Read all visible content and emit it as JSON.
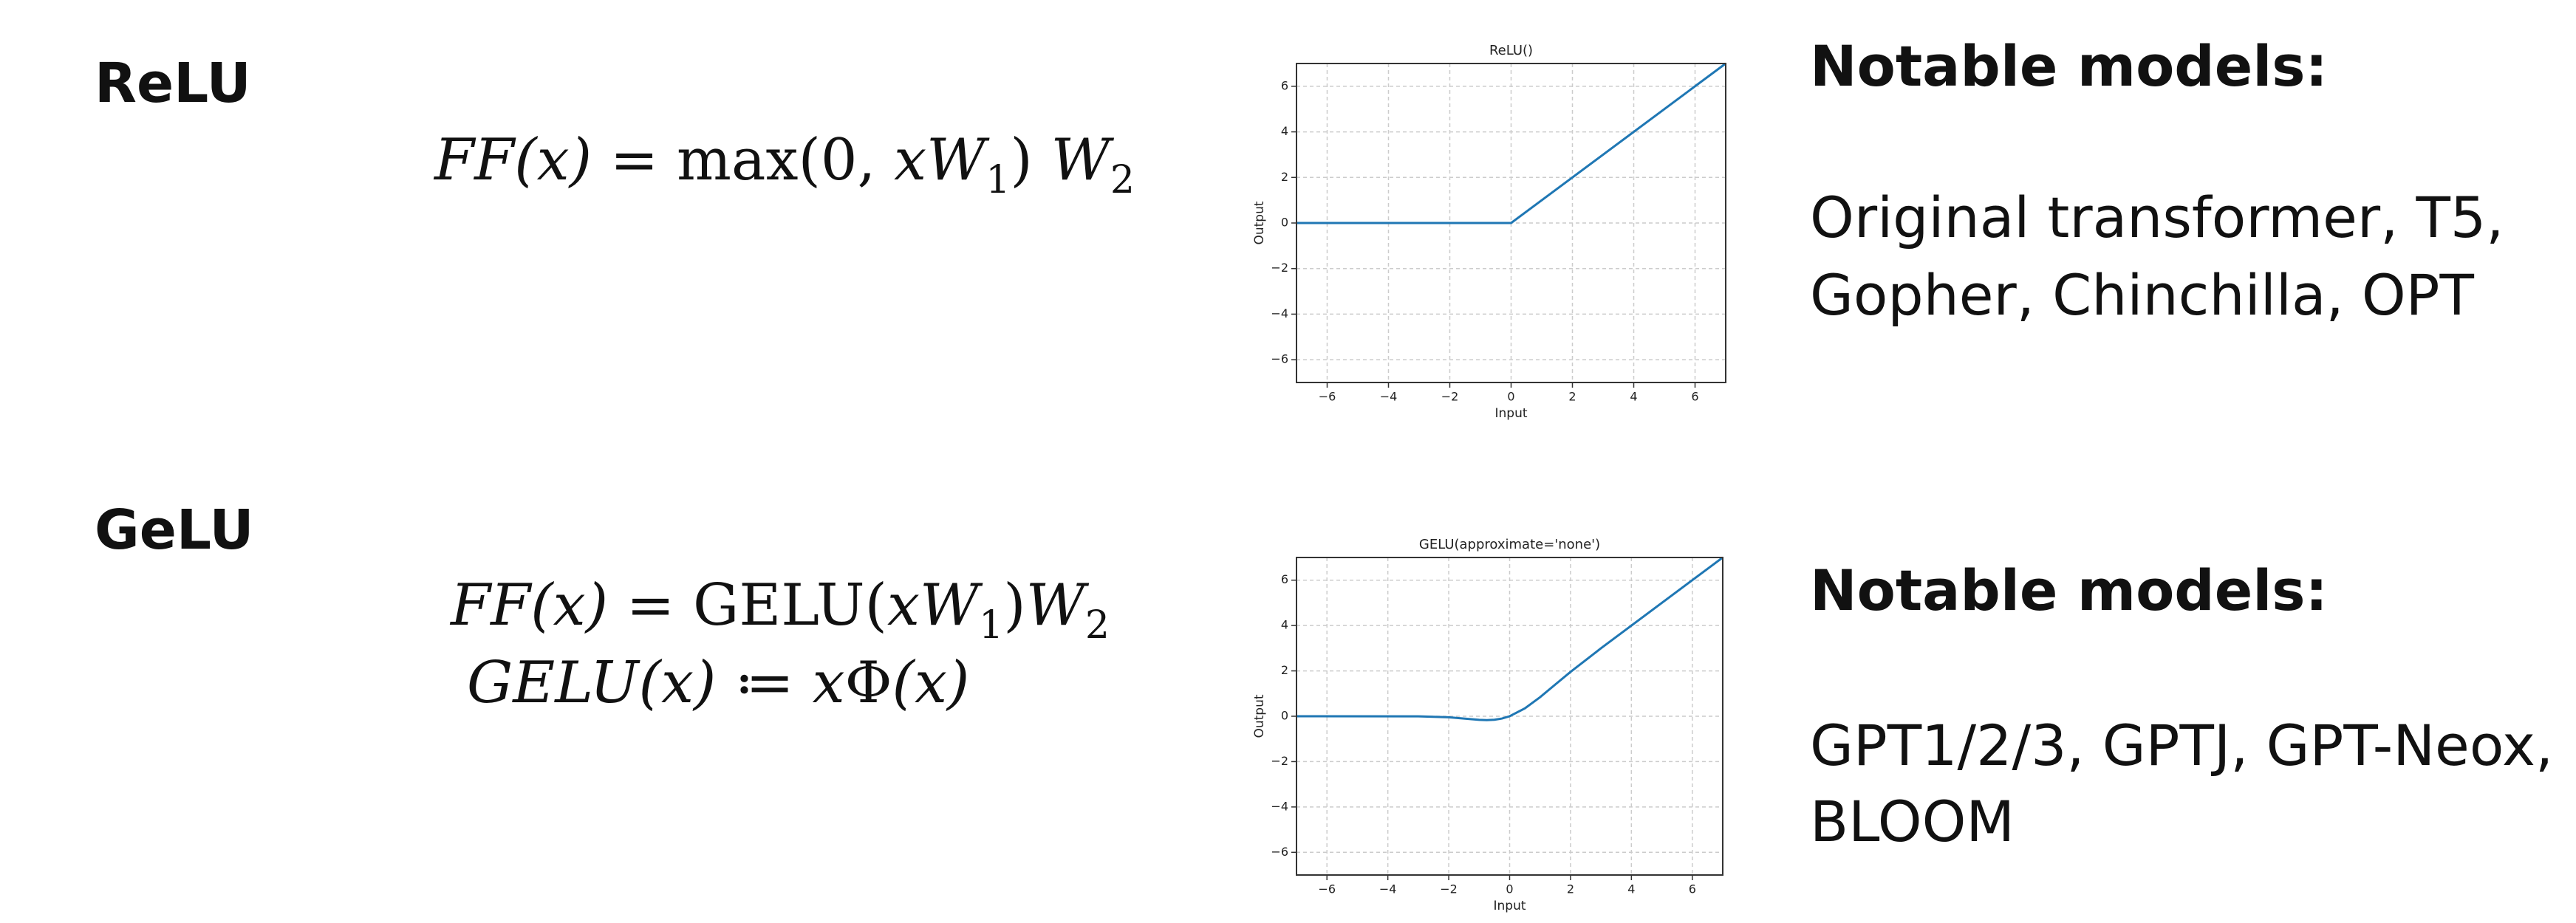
{
  "slides": [
    {
      "heading": "ReLU",
      "formula": [
        [
          "FF(x)",
          " = max(0, ",
          "xW",
          "1",
          ") ",
          "W",
          "2"
        ]
      ],
      "notable_heading": "Notable models:",
      "notable_lines": [
        "Original transformer, T5,",
        "Gopher, Chinchilla, OPT"
      ]
    },
    {
      "heading": "GeLU",
      "formula": [
        [
          "FF(x)",
          " = GELU(",
          "xW",
          "1",
          ")",
          "W",
          "2"
        ],
        [
          "GELU(x)",
          " ≔ ",
          "x",
          "Φ",
          "(x)"
        ]
      ],
      "notable_heading": "Notable models:",
      "notable_lines": [
        "GPT1/2/3, GPTJ, GPT-Neox,",
        "BLOOM"
      ]
    }
  ],
  "chart_data": [
    {
      "type": "line",
      "title": "ReLU()",
      "x_label": "Input",
      "y_label": "Output",
      "color": "#1f77b4",
      "grid": true,
      "x": [
        -7,
        0,
        7
      ],
      "values": [
        0,
        0,
        7
      ],
      "xlim": [
        -7,
        7
      ],
      "ylim": [
        -7,
        7
      ],
      "xticks": [
        {
          "value": -6,
          "label": "−6"
        },
        {
          "value": -4,
          "label": "−4"
        },
        {
          "value": -2,
          "label": "−2"
        },
        0,
        2,
        4,
        6
      ],
      "yticks": [
        {
          "value": -6,
          "label": "−6"
        },
        {
          "value": -4,
          "label": "−4"
        },
        {
          "value": -2,
          "label": "−2"
        },
        0,
        2,
        4,
        6
      ]
    },
    {
      "type": "line",
      "title": "GELU(approximate='none')",
      "x_label": "Input",
      "y_label": "Output",
      "color": "#1f77b4",
      "grid": true,
      "x": [
        -7,
        -3,
        -2,
        -1.5,
        -1,
        -0.75,
        -0.5,
        -0.25,
        0,
        0.5,
        1,
        1.5,
        2,
        3,
        4,
        7
      ],
      "values": [
        0,
        -0.004,
        -0.0455,
        -0.1002,
        -0.1587,
        -0.17,
        -0.1543,
        -0.1003,
        0,
        0.3457,
        0.8413,
        1.3998,
        1.9545,
        2.996,
        4,
        7
      ],
      "xlim": [
        -7,
        7
      ],
      "ylim": [
        -7,
        7
      ],
      "xticks": [
        {
          "value": -6,
          "label": "−6"
        },
        {
          "value": -4,
          "label": "−4"
        },
        {
          "value": -2,
          "label": "−2"
        },
        0,
        2,
        4,
        6
      ],
      "yticks": [
        {
          "value": -6,
          "label": "−6"
        },
        {
          "value": -4,
          "label": "−4"
        },
        {
          "value": -2,
          "label": "−2"
        },
        0,
        2,
        4,
        6
      ]
    }
  ]
}
